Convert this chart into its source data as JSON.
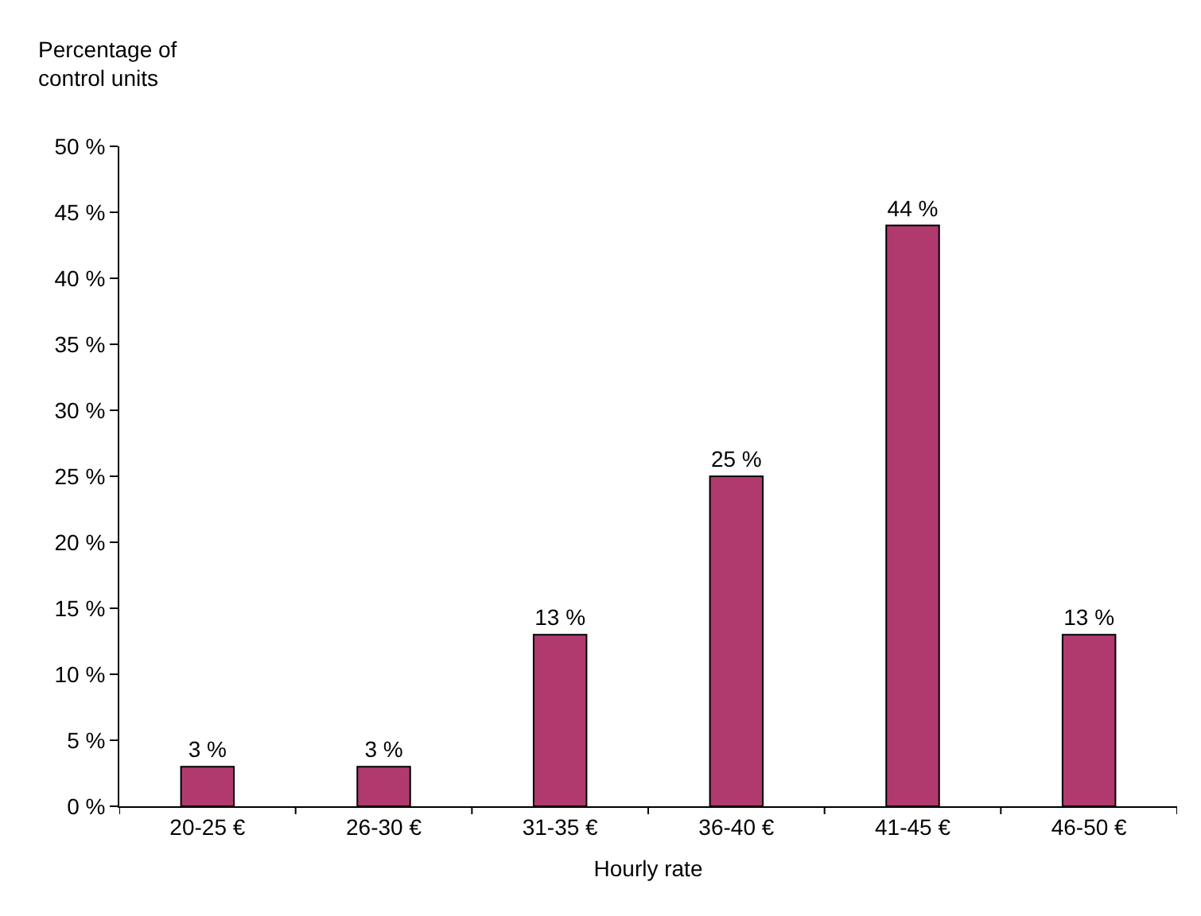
{
  "chart_data": {
    "type": "bar",
    "ylabel": "Percentage of\ncontrol units",
    "xlabel": "Hourly rate",
    "categories": [
      "20-25 €",
      "26-30 €",
      "31-35 €",
      "36-40 €",
      "41-45 €",
      "46-50 €"
    ],
    "values": [
      3,
      3,
      13,
      25,
      44,
      13
    ],
    "value_labels": [
      "3 %",
      "3 %",
      "13 %",
      "25 %",
      "44 %",
      "13 %"
    ],
    "color": "#b03a6e",
    "ylim": [
      0,
      50
    ],
    "yticks": [
      {
        "value": 0,
        "label": "0 %"
      },
      {
        "value": 5,
        "label": "5 %"
      },
      {
        "value": 10,
        "label": "10 %"
      },
      {
        "value": 15,
        "label": "15 %"
      },
      {
        "value": 20,
        "label": "20 %"
      },
      {
        "value": 25,
        "label": "25 %"
      },
      {
        "value": 30,
        "label": "30 %"
      },
      {
        "value": 35,
        "label": "35 %"
      },
      {
        "value": 40,
        "label": "40 %"
      },
      {
        "value": 45,
        "label": "45 %"
      },
      {
        "value": 50,
        "label": "50 %"
      }
    ],
    "grid": false
  }
}
